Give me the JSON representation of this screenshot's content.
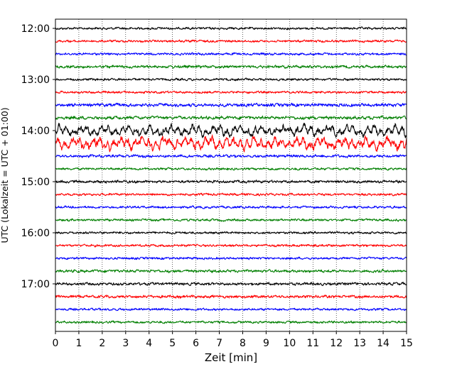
{
  "chart_data": {
    "type": "line",
    "xlabel": "Zeit  [min]",
    "ylabel": "UTC (Lokalzeit = UTC + 01:00)",
    "xlim": [
      0,
      15
    ],
    "x_ticks": [
      "0",
      "1",
      "2",
      "3",
      "4",
      "5",
      "6",
      "7",
      "8",
      "9",
      "10",
      "11",
      "12",
      "13",
      "14",
      "15"
    ],
    "y_ticks": [
      "12:00",
      "13:00",
      "14:00",
      "15:00",
      "16:00",
      "17:00"
    ],
    "grid": "vertical dotted at each minute",
    "colors": [
      "#000000",
      "#ff0000",
      "#0000ff",
      "#007f00"
    ],
    "traces": [
      {
        "start": "12:00",
        "amplitude": 0.1
      },
      {
        "start": "12:15",
        "amplitude": 0.1
      },
      {
        "start": "12:30",
        "amplitude": 0.1
      },
      {
        "start": "12:45",
        "amplitude": 0.12
      },
      {
        "start": "13:00",
        "amplitude": 0.1
      },
      {
        "start": "13:15",
        "amplitude": 0.1
      },
      {
        "start": "13:30",
        "amplitude": 0.14
      },
      {
        "start": "13:45",
        "amplitude": 0.14
      },
      {
        "start": "14:00",
        "amplitude": 0.3
      },
      {
        "start": "14:15",
        "amplitude": 0.35
      },
      {
        "start": "14:30",
        "amplitude": 0.12
      },
      {
        "start": "14:45",
        "amplitude": 0.1
      },
      {
        "start": "15:00",
        "amplitude": 0.12
      },
      {
        "start": "15:15",
        "amplitude": 0.1
      },
      {
        "start": "15:30",
        "amplitude": 0.1
      },
      {
        "start": "15:45",
        "amplitude": 0.1
      },
      {
        "start": "16:00",
        "amplitude": 0.1
      },
      {
        "start": "16:15",
        "amplitude": 0.1
      },
      {
        "start": "16:30",
        "amplitude": 0.1
      },
      {
        "start": "16:45",
        "amplitude": 0.12
      },
      {
        "start": "17:00",
        "amplitude": 0.12
      },
      {
        "start": "17:15",
        "amplitude": 0.12
      },
      {
        "start": "17:30",
        "amplitude": 0.1
      },
      {
        "start": "17:45",
        "amplitude": 0.1
      }
    ]
  }
}
